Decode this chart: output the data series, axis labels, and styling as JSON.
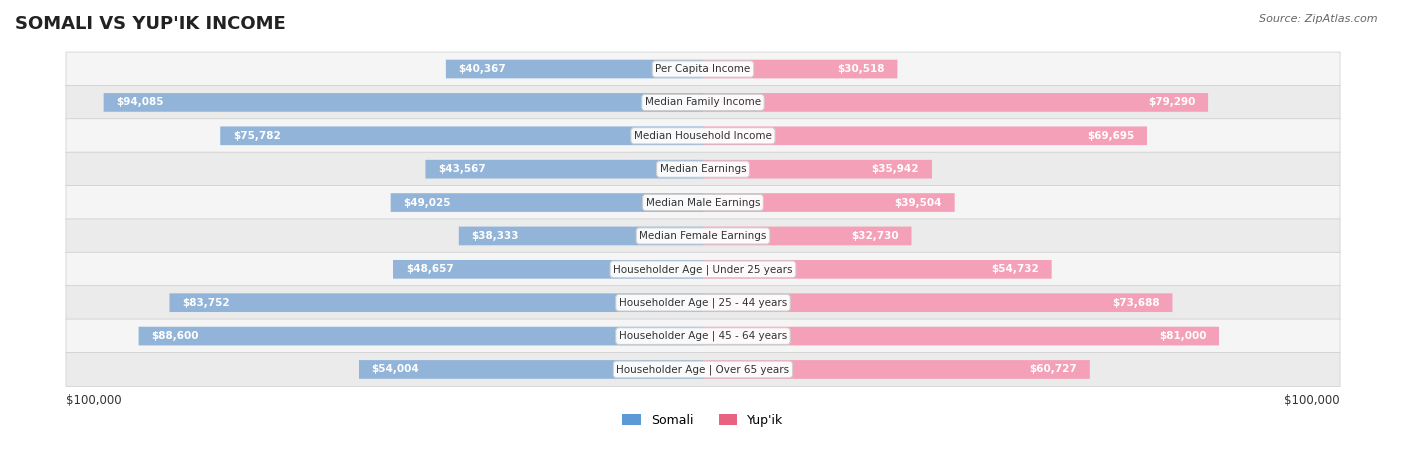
{
  "title": "SOMALI VS YUP'IK INCOME",
  "source": "Source: ZipAtlas.com",
  "categories": [
    "Per Capita Income",
    "Median Family Income",
    "Median Household Income",
    "Median Earnings",
    "Median Male Earnings",
    "Median Female Earnings",
    "Householder Age | Under 25 years",
    "Householder Age | 25 - 44 years",
    "Householder Age | 45 - 64 years",
    "Householder Age | Over 65 years"
  ],
  "somali_values": [
    40367,
    94085,
    75782,
    43567,
    49025,
    38333,
    48657,
    83752,
    88600,
    54004
  ],
  "yupik_values": [
    30518,
    79290,
    69695,
    35942,
    39504,
    32730,
    54732,
    73688,
    81000,
    60727
  ],
  "max_value": 100000,
  "somali_color": "#92b4d8",
  "somali_color_dark": "#5b9bd5",
  "yupik_color": "#f4a0b8",
  "yupik_color_dark": "#e8637f",
  "label_color_light": "#333333",
  "label_color_white": "#ffffff",
  "bg_row_odd": "#f5f5f5",
  "bg_row_even": "#ebebeb",
  "bar_height": 0.55,
  "legend_somali": "Somali",
  "legend_yupik": "Yup'ik",
  "xlabel_left": "$100,000",
  "xlabel_right": "$100,000"
}
